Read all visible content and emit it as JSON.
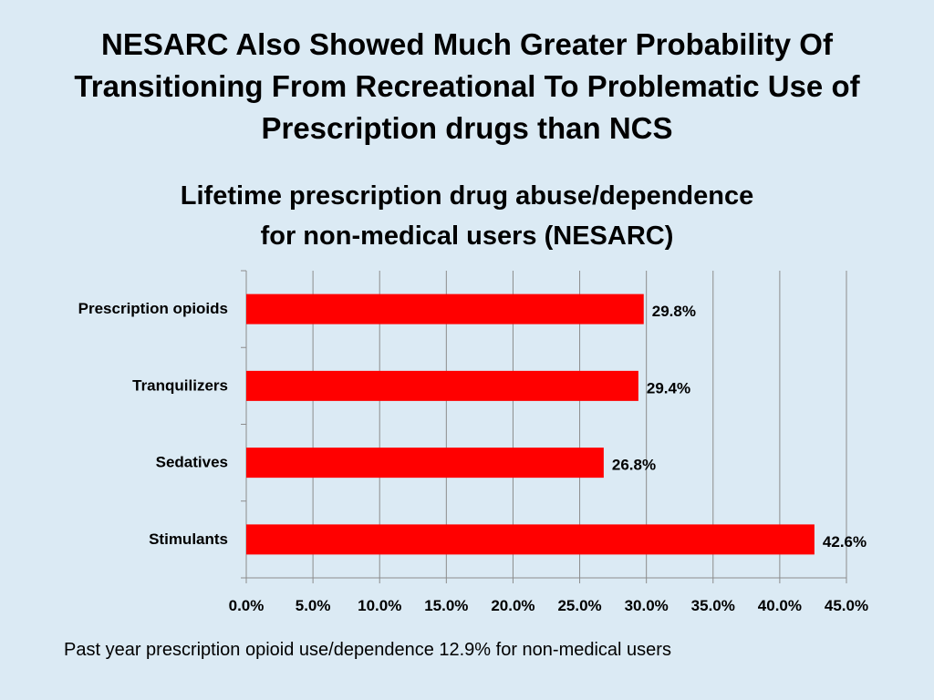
{
  "slide_title": [
    "NESARC Also Showed Much Greater Probability Of",
    "Transitioning From Recreational To Problematic Use of",
    "Prescription drugs than NCS"
  ],
  "footnote": "Past year prescription opioid use/dependence 12.9% for non-medical users",
  "colors": {
    "background": "#dbeaf4",
    "bar": "#ff0000",
    "gridline": "#8c8c8c"
  },
  "chart_data": {
    "type": "bar",
    "orientation": "horizontal",
    "title": [
      "Lifetime prescription drug abuse/dependence",
      "for non-medical users (NESARC)"
    ],
    "xlabel": "",
    "ylabel": "",
    "categories": [
      "Prescription opioids",
      "Tranquilizers",
      "Sedatives",
      "Stimulants"
    ],
    "values": [
      29.8,
      29.4,
      26.8,
      42.6
    ],
    "value_labels": [
      "29.8%",
      "29.4%",
      "26.8%",
      "42.6%"
    ],
    "xlim": [
      0,
      45
    ],
    "xticks": [
      0,
      5,
      10,
      15,
      20,
      25,
      30,
      35,
      40,
      45
    ],
    "xtick_labels": [
      "0.0%",
      "5.0%",
      "10.0%",
      "15.0%",
      "20.0%",
      "25.0%",
      "30.0%",
      "35.0%",
      "40.0%",
      "45.0%"
    ],
    "grid": true,
    "legend": false
  }
}
